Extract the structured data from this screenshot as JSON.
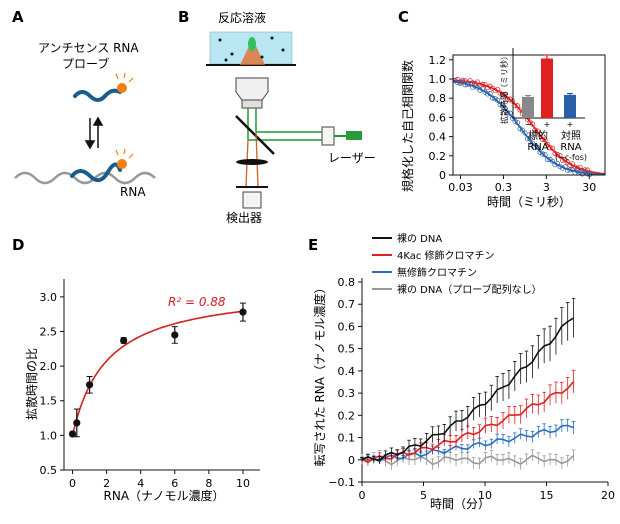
{
  "panels": {
    "A": {
      "letter": "A",
      "probe_label_line1": "アンチセンス RNA",
      "probe_label_line2": "プローブ",
      "target_label": "RNA"
    },
    "B": {
      "letter": "B",
      "sample_label": "反応溶液",
      "laser_label": "レーザー",
      "detector_label": "検出器"
    },
    "C": {
      "letter": "C",
      "ylabel": "規格化した自己相関関数",
      "xlabel": "時間（ミリ秒）",
      "inset": {
        "ylabel": "拡散時間（ミリ秒）",
        "minus": "−",
        "plus": "+",
        "plus2": "+",
        "group1": "標的",
        "group1b": "RNA",
        "group2": "対照",
        "group2b": "RNA",
        "group2c": "(−c-fos)"
      }
    },
    "D": {
      "letter": "D",
      "ylabel": "拡散時間の比",
      "xlabel": "RNA（ナノモル濃度）",
      "r2_label": "R² = 0.88"
    },
    "E": {
      "letter": "E",
      "ylabel": "転写された RNA（ナノモル濃度）",
      "xlabel": "時間（分）"
    }
  },
  "chart_data": [
    {
      "panel": "C",
      "type": "line",
      "x_scale": "log",
      "xlim": [
        0.02,
        70
      ],
      "ylim": [
        0,
        1.25
      ],
      "xticks": [
        "0.03",
        "0.3",
        "3",
        "30"
      ],
      "yticks": [
        "0",
        "0.2",
        "0.4",
        "0.6",
        "0.8",
        "1.0",
        "1.2"
      ],
      "series": [
        {
          "color": "#e02020",
          "tau": 1.6
        },
        {
          "color": "#2a5fa8",
          "tau": 0.75
        }
      ]
    },
    {
      "panel": "C-inset",
      "type": "bar",
      "values": [
        0.3,
        0.85,
        0.33
      ],
      "errors": [
        0.02,
        0.05,
        0.02
      ],
      "colors": [
        "#888888",
        "#e02020",
        "#2a5fa8"
      ]
    },
    {
      "panel": "D",
      "type": "scatter",
      "x": [
        0,
        0.25,
        1,
        3,
        6,
        10
      ],
      "y": [
        1.02,
        1.18,
        1.73,
        2.37,
        2.45,
        2.78
      ],
      "yerr": [
        0.03,
        0.2,
        0.12,
        0.04,
        0.12,
        0.13
      ],
      "xlim": [
        -0.5,
        11
      ],
      "ylim": [
        0.5,
        3.2
      ],
      "xticks": [
        0,
        2,
        4,
        6,
        8,
        10
      ],
      "yticks": [
        "0.5",
        "1.0",
        "1.5",
        "2.0",
        "2.5",
        "3.0"
      ],
      "fit_color": "#d42020",
      "fit": {
        "a": 1.0,
        "b": 2.15,
        "k": 2.0
      }
    },
    {
      "panel": "E",
      "type": "line",
      "xlim": [
        0,
        20
      ],
      "ylim": [
        -0.1,
        0.8
      ],
      "xticks": [
        0,
        5,
        10,
        15,
        20
      ],
      "yticks": [
        "−0.1",
        "0",
        "0.1",
        "0.2",
        "0.3",
        "0.4",
        "0.5",
        "0.6",
        "0.7",
        "0.8"
      ],
      "legend_position": "top-left",
      "series": [
        {
          "name": "裸の DNA",
          "color": "#111111",
          "end": 0.65,
          "p": 1.7
        },
        {
          "name": "4Kac 修飾クロマチン",
          "color": "#e02020",
          "end": 0.34,
          "p": 1.6
        },
        {
          "name": "無修飾クロマチン",
          "color": "#2a6fc0",
          "end": 0.155,
          "p": 1.4
        },
        {
          "name": "裸の DNA（プローブ配列なし）",
          "color": "#999999",
          "end": 0.0,
          "p": 1.0
        }
      ]
    }
  ]
}
